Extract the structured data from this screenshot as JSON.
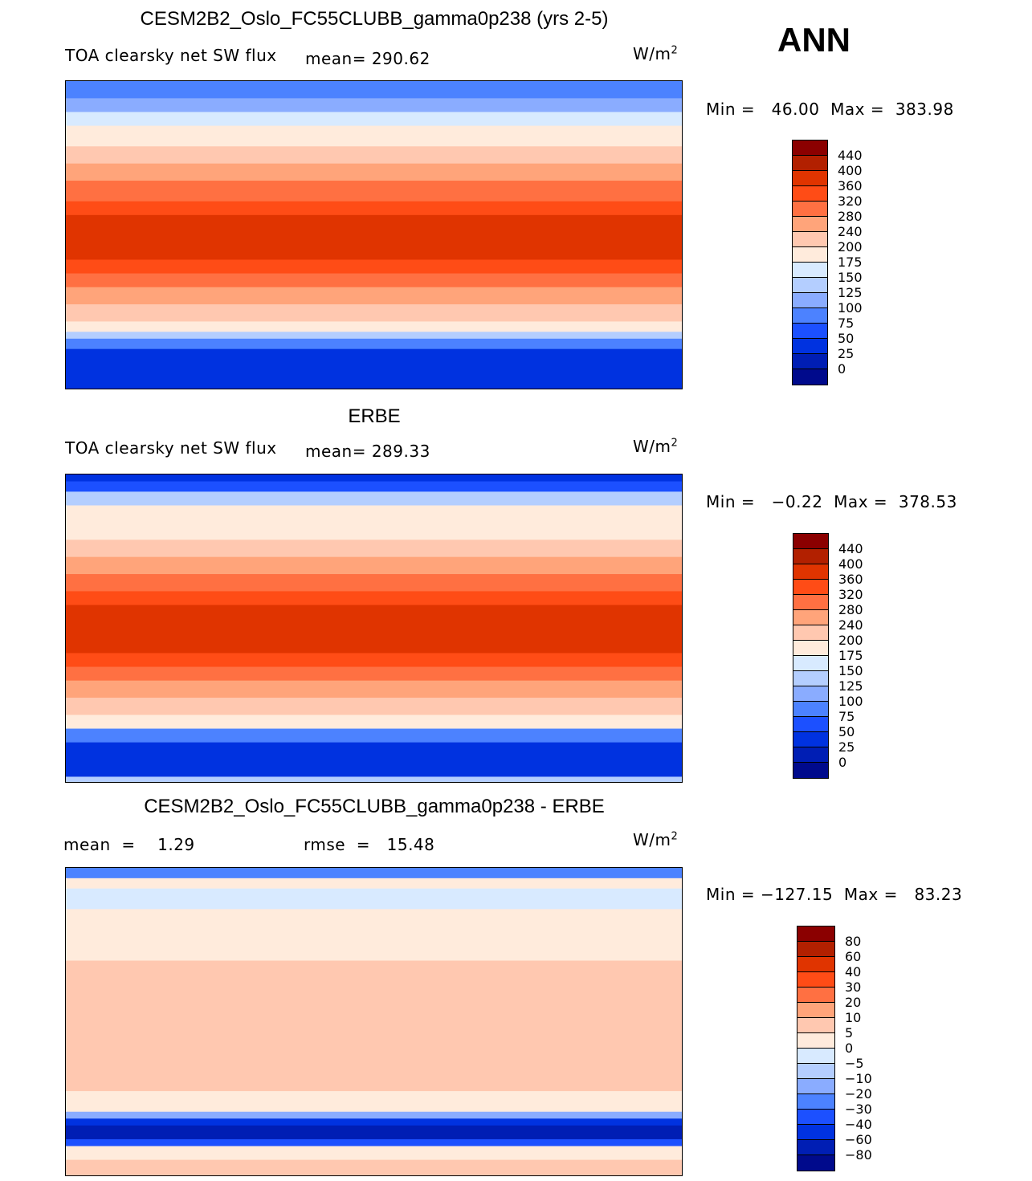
{
  "season": "ANN",
  "palette": [
    "#8b0000",
    "#b22000",
    "#e03400",
    "#ff4c16",
    "#ff7042",
    "#ffa47a",
    "#ffc8b0",
    "#ffebdc",
    "#d8eaff",
    "#b4ceff",
    "#8aacff",
    "#4c82ff",
    "#1c50ff",
    "#0032e0",
    "#001eb4",
    "#000a8c"
  ],
  "panels": [
    {
      "title": "CESM2B2_Oslo_FC55CLUBB_gamma0p238 (yrs 2-5)",
      "variable": "TOA clearsky net SW flux",
      "mean": "mean=  290.62",
      "units": "W/m",
      "units_sup": "2",
      "minmax": "Min =   46.00  Max =  383.98",
      "colorbar_labels": [
        "440",
        "400",
        "360",
        "320",
        "280",
        "240",
        "200",
        "175",
        "150",
        "125",
        "100",
        "75",
        "50",
        "25",
        "0"
      ],
      "zonal_bands": [
        [
          90,
          80,
          11
        ],
        [
          80,
          72,
          10
        ],
        [
          72,
          64,
          8
        ],
        [
          64,
          52,
          7
        ],
        [
          52,
          42,
          6
        ],
        [
          42,
          32,
          5
        ],
        [
          32,
          20,
          4
        ],
        [
          20,
          12,
          3
        ],
        [
          12,
          -14,
          2
        ],
        [
          -14,
          -22,
          3
        ],
        [
          -22,
          -30,
          4
        ],
        [
          -30,
          -40,
          5
        ],
        [
          -40,
          -50,
          6
        ],
        [
          -50,
          -56,
          7
        ],
        [
          -56,
          -60,
          9
        ],
        [
          -60,
          -66,
          11
        ],
        [
          -66,
          -90,
          13
        ]
      ]
    },
    {
      "title": "ERBE",
      "variable": "TOA clearsky net SW flux",
      "mean": "mean=  289.33",
      "units": "W/m",
      "units_sup": "2",
      "minmax": "Min =   −0.22  Max =  378.53",
      "colorbar_labels": [
        "440",
        "400",
        "360",
        "320",
        "280",
        "240",
        "200",
        "175",
        "150",
        "125",
        "100",
        "75",
        "50",
        "25",
        "0"
      ],
      "zonal_bands": [
        [
          90,
          86,
          13
        ],
        [
          86,
          80,
          12
        ],
        [
          80,
          72,
          9
        ],
        [
          72,
          64,
          7
        ],
        [
          64,
          52,
          7
        ],
        [
          52,
          42,
          6
        ],
        [
          42,
          32,
          5
        ],
        [
          32,
          22,
          4
        ],
        [
          22,
          14,
          3
        ],
        [
          14,
          -14,
          2
        ],
        [
          -14,
          -22,
          3
        ],
        [
          -22,
          -30,
          4
        ],
        [
          -30,
          -40,
          5
        ],
        [
          -40,
          -50,
          6
        ],
        [
          -50,
          -58,
          7
        ],
        [
          -58,
          -66,
          11
        ],
        [
          -66,
          -86,
          13
        ],
        [
          -86,
          -90,
          9
        ]
      ]
    },
    {
      "title": "CESM2B2_Oslo_FC55CLUBB_gamma0p238 - ERBE",
      "mean": "mean  =    1.29",
      "rmse": "rmse  =   15.48",
      "units": "W/m",
      "units_sup": "2",
      "minmax": "Min = −127.15  Max =   83.23",
      "colorbar_labels": [
        "80",
        "60",
        "40",
        "30",
        "20",
        "10",
        "5",
        "0",
        "−5",
        "−10",
        "−20",
        "−30",
        "−40",
        "−60",
        "−80"
      ],
      "zonal_bands": [
        [
          90,
          84,
          11
        ],
        [
          84,
          78,
          7
        ],
        [
          78,
          66,
          8
        ],
        [
          66,
          50,
          7
        ],
        [
          50,
          36,
          7
        ],
        [
          36,
          -40,
          6
        ],
        [
          -40,
          -52,
          7
        ],
        [
          -52,
          -56,
          10
        ],
        [
          -56,
          -60,
          13
        ],
        [
          -60,
          -68,
          14
        ],
        [
          -68,
          -72,
          12
        ],
        [
          -72,
          -80,
          7
        ],
        [
          -80,
          -90,
          6
        ]
      ]
    }
  ]
}
